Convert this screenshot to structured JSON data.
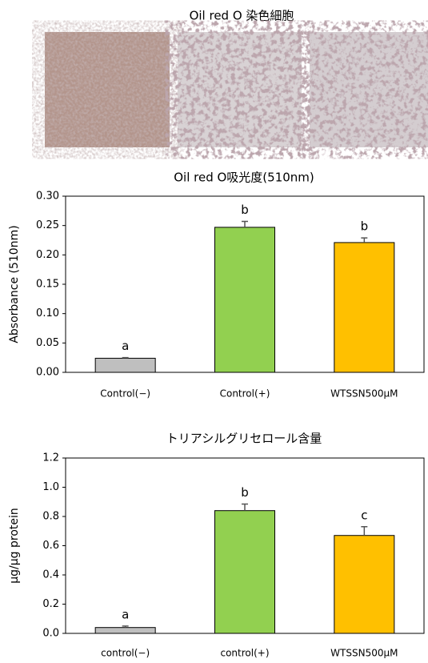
{
  "header": {
    "title": "Oil red O 染色細胞"
  },
  "chart_data": [
    {
      "type": "bar",
      "title": "Oil red O吸光度(510nm)",
      "y_label": "Absorbance (510nm)",
      "categories": [
        "Control(−)",
        "Control(+)",
        "WTSSN500μM"
      ],
      "values": [
        0.024,
        0.247,
        0.221
      ],
      "errors": [
        0.001,
        0.01,
        0.008
      ],
      "letters": [
        "a",
        "b",
        "b"
      ],
      "colors": [
        "#bfbfbf",
        "#92d050",
        "#ffc000"
      ],
      "ylim": [
        0,
        0.3
      ],
      "yticks": [
        {
          "value": 0,
          "label": "0.00"
        },
        {
          "value": 0.05,
          "label": "0.05"
        },
        {
          "value": 0.1,
          "label": "0.10"
        },
        {
          "value": 0.15,
          "label": "0.15"
        },
        {
          "value": 0.2,
          "label": "0.20"
        },
        {
          "value": 0.25,
          "label": "0.25"
        },
        {
          "value": 0.3,
          "label": "0.30"
        }
      ]
    },
    {
      "type": "bar",
      "title": "トリアシルグリセロール含量",
      "y_label": "μg/μg protein",
      "categories": [
        "control(−)",
        "control(+)",
        "WTSSN500μM"
      ],
      "values": [
        0.04,
        0.84,
        0.67
      ],
      "errors": [
        0.01,
        0.045,
        0.06
      ],
      "letters": [
        "a",
        "b",
        "c"
      ],
      "colors": [
        "#bfbfbf",
        "#92d050",
        "#ffc000"
      ],
      "ylim": [
        0,
        1.2
      ],
      "yticks": [
        {
          "value": 0,
          "label": "0.0"
        },
        {
          "value": 0.2,
          "label": "0.2"
        },
        {
          "value": 0.4,
          "label": "0.4"
        },
        {
          "value": 0.6,
          "label": "0.6"
        },
        {
          "value": 0.8,
          "label": "0.8"
        },
        {
          "value": 1,
          "label": "1.0"
        },
        {
          "value": 1.2,
          "label": "1.2"
        }
      ]
    }
  ]
}
